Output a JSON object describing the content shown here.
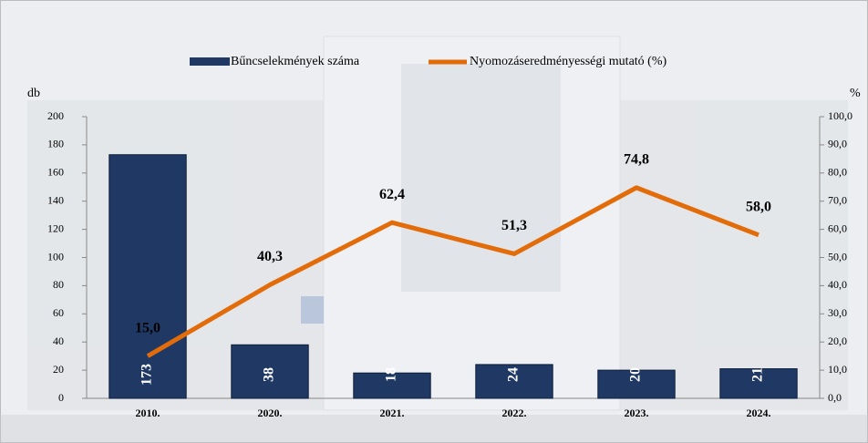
{
  "chart_data": {
    "type": "bar-line",
    "categories": [
      "2010.",
      "2020.",
      "2021.",
      "2022.",
      "2023.",
      "2024."
    ],
    "series": [
      {
        "name": "Bűncselekmények száma",
        "type": "bar",
        "color": "#1f3864",
        "values": [
          173,
          38,
          18,
          24,
          20,
          21
        ]
      },
      {
        "name": "Nyomozáseredményességi mutató (%)",
        "type": "line",
        "axis": "y2",
        "color": "#e36c0a",
        "values": [
          15.0,
          40.3,
          62.4,
          51.3,
          74.8,
          58.0
        ],
        "value_labels": [
          "15,0",
          "40,3",
          "62,4",
          "51,3",
          "74,8",
          "58,0"
        ]
      }
    ],
    "y_label": "db",
    "y2_label": "%",
    "ylim": [
      0,
      200
    ],
    "yticks": [
      0,
      20,
      40,
      60,
      80,
      100,
      120,
      140,
      160,
      180,
      200
    ],
    "y2lim": [
      0,
      100
    ],
    "y2ticks": [
      {
        "value": 0,
        "label": "0,0"
      },
      {
        "value": 10,
        "label": "10,0"
      },
      {
        "value": 20,
        "label": "20,0"
      },
      {
        "value": 30,
        "label": "30,0"
      },
      {
        "value": 40,
        "label": "40,0"
      },
      {
        "value": 50,
        "label": "50,0"
      },
      {
        "value": 60,
        "label": "60,0"
      },
      {
        "value": 70,
        "label": "70,0"
      },
      {
        "value": 80,
        "label": "80,0"
      },
      {
        "value": 90,
        "label": "90,0"
      },
      {
        "value": 100,
        "label": "100,0"
      }
    ],
    "legend": "top"
  }
}
